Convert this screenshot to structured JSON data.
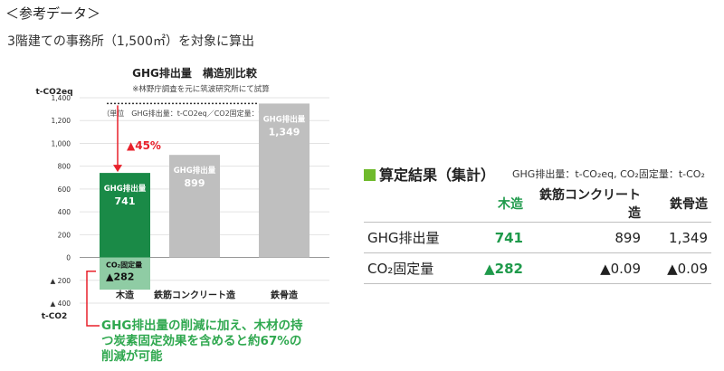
{
  "heading": "＜参考データ＞",
  "subheading": "3階建ての事務所（1,500㎡）を対象に算出",
  "chart_data": {
    "type": "bar",
    "title": "GHG排出量　構造別比較",
    "subtitle": "※林野庁調査を元に筑波研究所にて試算",
    "units_note": "（単位　GHG排出量：t-CO2eq／CO2固定量：t-CO2）",
    "y_label_top": "t-CO2eq",
    "y_label_bottom": "t-CO2",
    "yticks": [
      1400,
      1200,
      1000,
      800,
      600,
      400,
      200,
      0,
      -200,
      -400
    ],
    "yticks_label": [
      "1,400",
      "1,200",
      "1,000",
      "800",
      "600",
      "400",
      "200",
      "0",
      "▲ 200",
      "▲ 400"
    ],
    "ylim": [
      -400,
      1400
    ],
    "categories": [
      "木造",
      "鉄筋コンクリート造",
      "鉄骨造"
    ],
    "series": [
      {
        "name": "GHG排出量",
        "values": [
          741,
          899,
          1349
        ],
        "labels": [
          "GHG排出量",
          "GHG排出量",
          "GHG排出量"
        ],
        "value_labels": [
          "741",
          "899",
          "1,349"
        ],
        "colors": [
          "#1a8a47",
          "#bfbfbf",
          "#bfbfbf"
        ]
      },
      {
        "name": "CO2固定量",
        "values": [
          -282,
          0,
          0
        ],
        "labels": [
          "CO₂固定量",
          "",
          ""
        ],
        "value_labels": [
          "▲282",
          "",
          ""
        ],
        "colors": [
          "#8fcca4",
          "#bfbfbf",
          "#bfbfbf"
        ]
      }
    ],
    "annotation_arrow": "▲45%",
    "note_lines": [
      "GHG排出量の削減に加え、木材の持",
      "つ炭素固定効果を含めると約67%の",
      "削減が可能"
    ],
    "accent_red": "#e8212b",
    "note_green": "#2fa84f"
  },
  "summary": {
    "title": "算定結果（集計）",
    "units": "GHG排出量：t-CO₂eq, CO₂固定量：t-CO₂",
    "col_headers": [
      "",
      "木造",
      "鉄筋コンクリート造",
      "鉄骨造"
    ],
    "rows": [
      {
        "label": "GHG排出量",
        "values": [
          "741",
          "899",
          "1,349"
        ]
      },
      {
        "label": "CO₂固定量",
        "values": [
          "▲282",
          "▲0.09",
          "▲0.09"
        ]
      }
    ]
  }
}
